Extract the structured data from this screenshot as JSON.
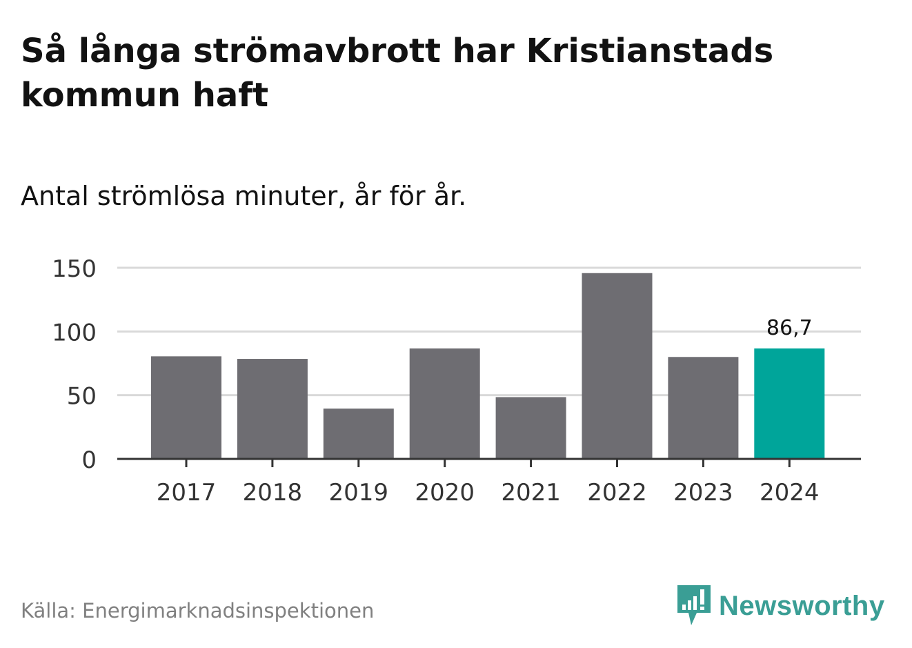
{
  "title": "Så långa strömavbrott har Kristianstads kommun haft",
  "subtitle": "Antal strömlösa minuter, år för år.",
  "source": "Källa: Energimarknadsinspektionen",
  "brand": {
    "name": "Newsworthy",
    "icon": "newsworthy-logo-icon"
  },
  "colors": {
    "bar": "#6e6d72",
    "highlight": "#00a59a",
    "grid": "#d9d9d9",
    "axis": "#333333",
    "brand": "#3a9e95"
  },
  "chart_data": {
    "type": "bar",
    "title": "Så långa strömavbrott har Kristianstads kommun haft",
    "subtitle": "Antal strömlösa minuter, år för år.",
    "xlabel": "",
    "ylabel": "",
    "categories": [
      "2017",
      "2018",
      "2019",
      "2020",
      "2021",
      "2022",
      "2023",
      "2024"
    ],
    "values": [
      80.5,
      78.5,
      39.5,
      86.7,
      48.5,
      145.8,
      80.0,
      86.7
    ],
    "ylim": [
      0,
      150
    ],
    "yticks": [
      0,
      50,
      100,
      150
    ],
    "highlight_index": 7,
    "data_labels": [
      {
        "index": 7,
        "text": "86,7"
      }
    ],
    "grid": true
  }
}
